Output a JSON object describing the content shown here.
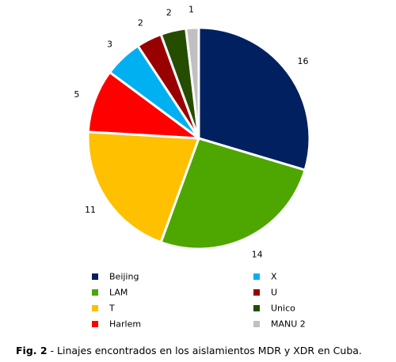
{
  "chart_data": {
    "type": "pie",
    "title": "",
    "slices": [
      {
        "label": "Beijing",
        "value": 16,
        "color": "#002060"
      },
      {
        "label": "LAM",
        "value": 14,
        "color": "#4ea600"
      },
      {
        "label": "T",
        "value": 11,
        "color": "#ffc000"
      },
      {
        "label": "Harlem",
        "value": 5,
        "color": "#ff0000"
      },
      {
        "label": "X",
        "value": 3,
        "color": "#00b0f0"
      },
      {
        "label": "U",
        "value": 2,
        "color": "#990000"
      },
      {
        "label": "Unico",
        "value": 2,
        "color": "#254d00"
      },
      {
        "label": "MANU 2",
        "value": 1,
        "color": "#c0c0c0"
      }
    ],
    "legend_placement": "bottom"
  },
  "caption": {
    "prefix": "Fig. 2",
    "text": " - Linajes encontrados en los aislamientos MDR y XDR en Cuba."
  }
}
